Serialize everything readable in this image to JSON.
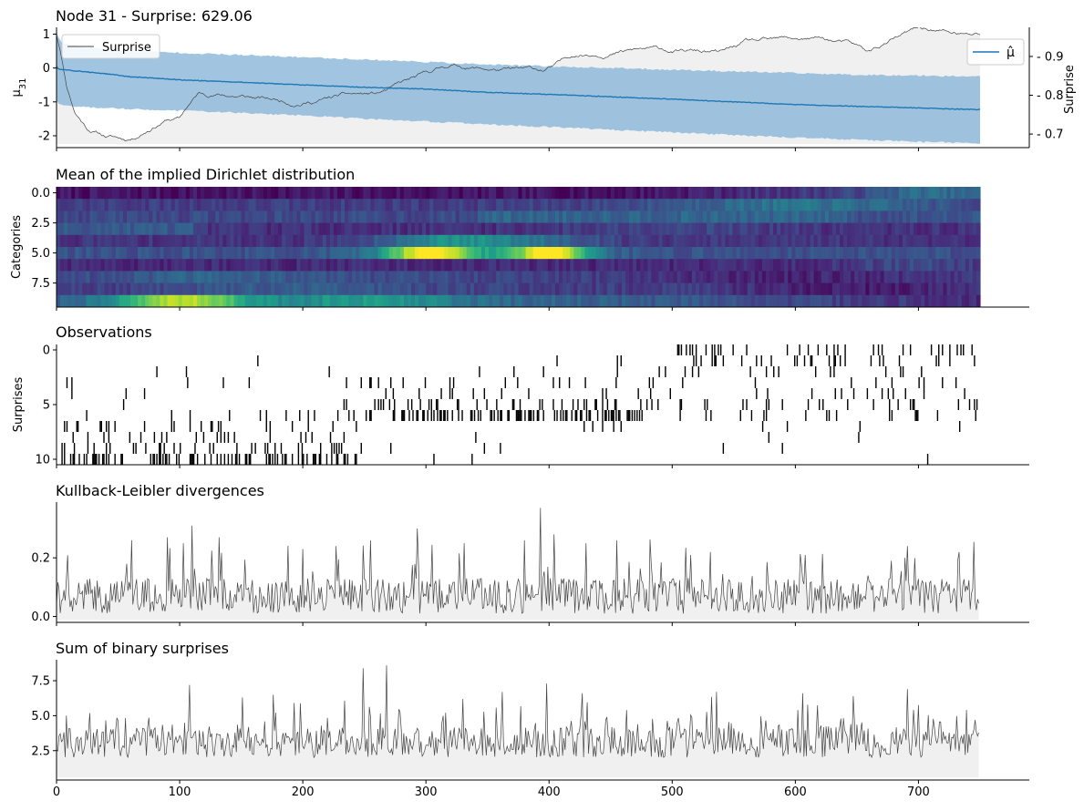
{
  "chart_data": [
    {
      "type": "line",
      "title": "Node 31 - Surprise: 629.06",
      "xlabel": "",
      "ylabel": "μ₃₁",
      "ylabel_right": "Surprise",
      "xlim": [
        0,
        790
      ],
      "ylim": [
        -2.35,
        1.2
      ],
      "ylim_right": [
        0.665,
        0.975
      ],
      "yticks": [
        1,
        0,
        -1,
        -2
      ],
      "yticks_right": [
        0.9,
        0.8,
        0.7
      ],
      "legend_left": "Surprise",
      "legend_right": "μ̂",
      "legend_placement": [
        "upper-left",
        "upper-right"
      ],
      "mu_hat": {
        "x": [
          0,
          1,
          5,
          20,
          40,
          60,
          80,
          100,
          150,
          200,
          250,
          300,
          350,
          400,
          450,
          500,
          550,
          600,
          650,
          700,
          750
        ],
        "y": [
          0.05,
          -0.02,
          -0.05,
          -0.1,
          -0.17,
          -0.26,
          -0.3,
          -0.35,
          -0.42,
          -0.5,
          -0.57,
          -0.62,
          -0.72,
          -0.78,
          -0.85,
          -0.92,
          -1.0,
          -1.08,
          -1.13,
          -1.18,
          -1.23
        ]
      },
      "mu_hat_band": {
        "x": [
          0,
          1,
          5,
          20,
          50,
          100,
          150,
          200,
          250,
          300,
          350,
          400,
          450,
          500,
          550,
          600,
          650,
          700,
          750
        ],
        "upper": [
          1.05,
          0.95,
          0.72,
          0.62,
          0.52,
          0.45,
          0.38,
          0.32,
          0.25,
          0.18,
          0.1,
          0.05,
          0.0,
          -0.05,
          -0.1,
          -0.15,
          -0.2,
          -0.22,
          -0.25
        ],
        "lower": [
          -0.95,
          -1.05,
          -1.1,
          -1.15,
          -1.2,
          -1.26,
          -1.32,
          -1.4,
          -1.5,
          -1.58,
          -1.66,
          -1.74,
          -1.82,
          -1.9,
          -1.98,
          -2.05,
          -2.12,
          -2.18,
          -2.22
        ]
      },
      "surprise": {
        "x": [
          0,
          3,
          8,
          15,
          25,
          40,
          55,
          62,
          70,
          80,
          90,
          100,
          105,
          115,
          130,
          150,
          170,
          190,
          210,
          230,
          260,
          290,
          300,
          320,
          340,
          370,
          395,
          405,
          420,
          450,
          480,
          500,
          520,
          540,
          560,
          580,
          600,
          620,
          640,
          660,
          680,
          700,
          720,
          740,
          750
        ],
        "y": [
          0.955,
          0.92,
          0.83,
          0.76,
          0.72,
          0.7,
          0.69,
          0.693,
          0.71,
          0.73,
          0.745,
          0.745,
          0.77,
          0.805,
          0.805,
          0.8,
          0.79,
          0.782,
          0.79,
          0.8,
          0.8,
          0.835,
          0.845,
          0.872,
          0.868,
          0.862,
          0.858,
          0.87,
          0.9,
          0.915,
          0.92,
          0.912,
          0.91,
          0.905,
          0.93,
          0.93,
          0.935,
          0.94,
          0.93,
          0.905,
          0.94,
          0.965,
          0.96,
          0.95,
          0.952
        ]
      }
    },
    {
      "type": "heatmap",
      "title": "Mean of the implied Dirichlet distribution",
      "xlabel": "",
      "ylabel": "Categories",
      "xlim": [
        0,
        790
      ],
      "ylim": [
        9.5,
        -0.5
      ],
      "yticks": [
        0.0,
        2.5,
        5.0,
        7.5
      ],
      "colormap": "viridis",
      "categories": 10,
      "n_trials": 750
    },
    {
      "type": "heatmap",
      "title": "Observations",
      "xlabel": "",
      "ylabel": "Surprises",
      "xlim": [
        0,
        790
      ],
      "ylim": [
        10.5,
        -0.5
      ],
      "yticks": [
        0,
        5,
        10
      ],
      "rows": 11,
      "n_trials": 750
    },
    {
      "type": "area",
      "title": "Kullback-Leibler divergences",
      "xlabel": "",
      "ylabel": "",
      "xlim": [
        0,
        790
      ],
      "ylim": [
        -0.02,
        0.39
      ],
      "yticks": [
        0.2,
        0.0
      ],
      "n_points": 750,
      "peaks": [
        {
          "x": 61,
          "y": 0.26
        },
        {
          "x": 90,
          "y": 0.27
        },
        {
          "x": 103,
          "y": 0.25
        },
        {
          "x": 110,
          "y": 0.31
        },
        {
          "x": 132,
          "y": 0.27
        },
        {
          "x": 200,
          "y": 0.23
        },
        {
          "x": 227,
          "y": 0.24
        },
        {
          "x": 255,
          "y": 0.26
        },
        {
          "x": 293,
          "y": 0.3
        },
        {
          "x": 331,
          "y": 0.25
        },
        {
          "x": 380,
          "y": 0.26
        },
        {
          "x": 393,
          "y": 0.37
        },
        {
          "x": 404,
          "y": 0.28
        },
        {
          "x": 430,
          "y": 0.25
        },
        {
          "x": 455,
          "y": 0.26
        },
        {
          "x": 515,
          "y": 0.21
        },
        {
          "x": 531,
          "y": 0.22
        },
        {
          "x": 608,
          "y": 0.21
        },
        {
          "x": 678,
          "y": 0.19
        },
        {
          "x": 691,
          "y": 0.24
        }
      ]
    },
    {
      "type": "area",
      "title": "Sum of binary surprises",
      "xlabel": "",
      "ylabel": "",
      "xlim": [
        0,
        790
      ],
      "ylim": [
        0.4,
        9.0
      ],
      "yticks": [
        7.5,
        5.0,
        2.5
      ],
      "xticks": [
        0,
        100,
        200,
        300,
        400,
        500,
        600,
        700
      ],
      "n_points": 750,
      "peaks": [
        {
          "x": 108,
          "y": 7.2
        },
        {
          "x": 151,
          "y": 6.3
        },
        {
          "x": 176,
          "y": 6.5
        },
        {
          "x": 198,
          "y": 5.9
        },
        {
          "x": 249,
          "y": 8.4
        },
        {
          "x": 268,
          "y": 8.6
        },
        {
          "x": 330,
          "y": 6.2
        },
        {
          "x": 362,
          "y": 6.7
        },
        {
          "x": 398,
          "y": 7.3
        },
        {
          "x": 427,
          "y": 6.6
        },
        {
          "x": 536,
          "y": 6.7
        },
        {
          "x": 606,
          "y": 6.6
        },
        {
          "x": 647,
          "y": 6.4
        },
        {
          "x": 691,
          "y": 6.9
        }
      ]
    }
  ]
}
